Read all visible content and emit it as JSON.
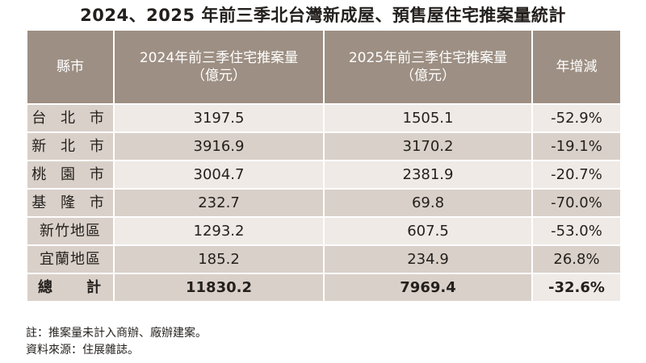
{
  "title": "2024、2025 年前三季北台灣新成屋、預售屋住宅推案量統計",
  "headers": [
    "縣市",
    "2024年前三季住宅推案量\n（億元）",
    "2025年前三季住宅推案量\n（億元）",
    "年增減"
  ],
  "rows": [
    [
      "台 北 市",
      "3197.5",
      "1505.1",
      "-52.9%"
    ],
    [
      "新 北 市",
      "3916.9",
      "3170.2",
      "-19.1%"
    ],
    [
      "桃 園 市",
      "3004.7",
      "2381.9",
      "-20.7%"
    ],
    [
      "基 隆 市",
      "232.7",
      "69.8",
      "-70.0%"
    ],
    [
      "新竹地區",
      "1293.2",
      "607.5",
      "-53.0%"
    ],
    [
      "宜蘭地區",
      "185.2",
      "234.9",
      "26.8%"
    ]
  ],
  "total": [
    "總　　計",
    "11830.2",
    "7969.4",
    "-32.6%"
  ],
  "notes": [
    "註：推案量未計入商辦、廠辦建案。",
    "資料來源：住展雜誌。"
  ],
  "colors": {
    "header_bg": "#9d8f83",
    "row_light": "#efeae6",
    "row_dark": "#d9d0c9"
  }
}
